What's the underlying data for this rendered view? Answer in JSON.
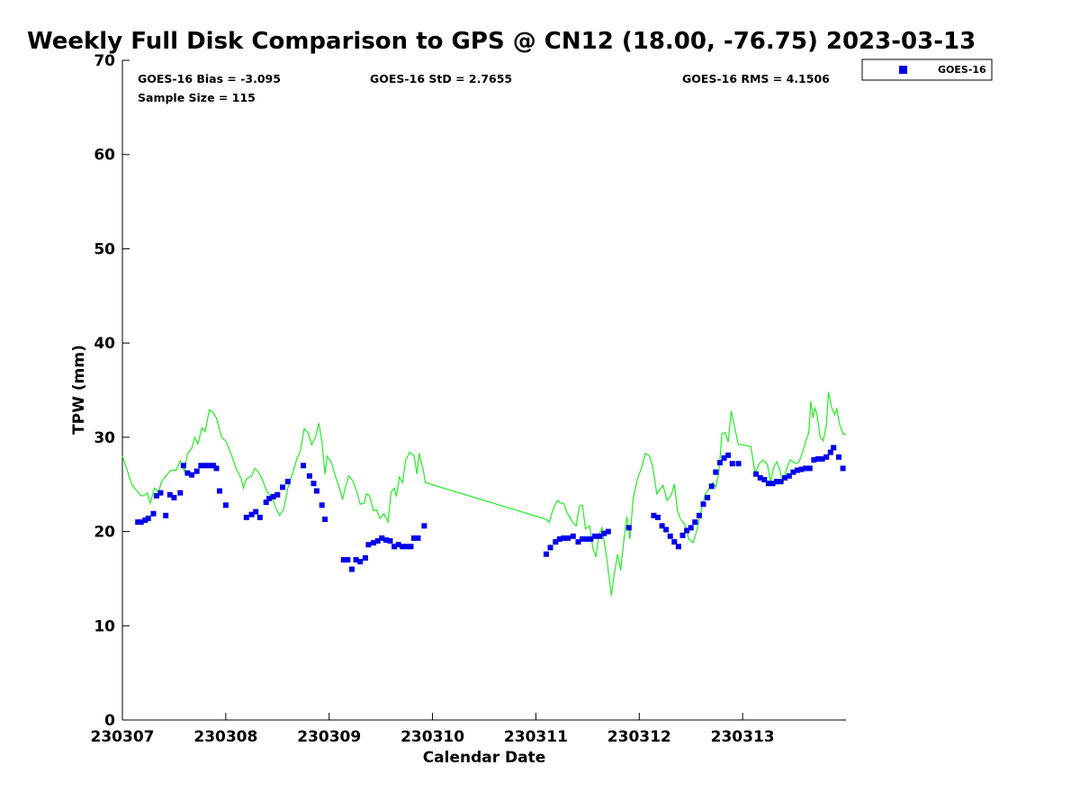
{
  "chart_data": {
    "type": "scatter",
    "title": "Weekly Full Disk Comparison to GPS @ CN12 (18.00, -76.75) 2023-03-13",
    "xlabel": "Calendar Date",
    "ylabel": "TPW (mm)",
    "xlim": [
      0,
      7
    ],
    "ylim": [
      0,
      70
    ],
    "x_tick_labels": [
      "230307",
      "230308",
      "230309",
      "230310",
      "230311",
      "230312",
      "230313"
    ],
    "y_tick_labels": [
      "0",
      "10",
      "20",
      "30",
      "40",
      "50",
      "60",
      "70"
    ],
    "x_units_note": "days from 2023-03-07 00Z",
    "grid": false,
    "legend_position": "top-right",
    "stats": {
      "bias": "GOES-16 Bias = -3.095",
      "std": "GOES-16 StD = 2.7655",
      "rms": "GOES-16 RMS = 4.1506",
      "sample": "Sample Size = 115"
    },
    "colors": {
      "goes": "#0000ee",
      "gps": "#22ee22",
      "axis": "#000000"
    },
    "series": [
      {
        "name": "GOES-16",
        "marker": "square",
        "color": "#0000ee",
        "points": [
          [
            0.15,
            21.0
          ],
          [
            0.18,
            21.0
          ],
          [
            0.22,
            21.2
          ],
          [
            0.25,
            21.4
          ],
          [
            0.3,
            21.9
          ],
          [
            0.33,
            23.8
          ],
          [
            0.37,
            24.1
          ],
          [
            0.42,
            21.7
          ],
          [
            0.46,
            23.9
          ],
          [
            0.5,
            23.6
          ],
          [
            0.56,
            24.1
          ],
          [
            0.59,
            27.0
          ],
          [
            0.63,
            26.2
          ],
          [
            0.67,
            26.0
          ],
          [
            0.72,
            26.4
          ],
          [
            0.76,
            27.0
          ],
          [
            0.8,
            27.0
          ],
          [
            0.84,
            27.0
          ],
          [
            0.88,
            27.0
          ],
          [
            0.91,
            26.7
          ],
          [
            0.94,
            24.3
          ],
          [
            1.0,
            22.8
          ],
          [
            1.2,
            21.5
          ],
          [
            1.25,
            21.8
          ],
          [
            1.29,
            22.1
          ],
          [
            1.33,
            21.5
          ],
          [
            1.39,
            23.1
          ],
          [
            1.42,
            23.5
          ],
          [
            1.46,
            23.7
          ],
          [
            1.5,
            23.9
          ],
          [
            1.55,
            24.7
          ],
          [
            1.6,
            25.3
          ],
          [
            1.75,
            27.0
          ],
          [
            1.81,
            25.9
          ],
          [
            1.85,
            25.1
          ],
          [
            1.88,
            24.3
          ],
          [
            1.93,
            22.8
          ],
          [
            1.96,
            21.3
          ],
          [
            2.14,
            17.0
          ],
          [
            2.18,
            17.0
          ],
          [
            2.22,
            16.0
          ],
          [
            2.26,
            17.0
          ],
          [
            2.3,
            16.8
          ],
          [
            2.35,
            17.2
          ],
          [
            2.38,
            18.6
          ],
          [
            2.43,
            18.8
          ],
          [
            2.47,
            19.0
          ],
          [
            2.51,
            19.3
          ],
          [
            2.55,
            19.1
          ],
          [
            2.59,
            19.0
          ],
          [
            2.63,
            18.4
          ],
          [
            2.67,
            18.6
          ],
          [
            2.71,
            18.4
          ],
          [
            2.75,
            18.4
          ],
          [
            2.79,
            18.4
          ],
          [
            2.82,
            19.3
          ],
          [
            2.86,
            19.3
          ],
          [
            2.92,
            20.6
          ],
          [
            4.1,
            17.6
          ],
          [
            4.14,
            18.3
          ],
          [
            4.19,
            18.9
          ],
          [
            4.23,
            19.2
          ],
          [
            4.27,
            19.3
          ],
          [
            4.31,
            19.3
          ],
          [
            4.36,
            19.5
          ],
          [
            4.41,
            18.9
          ],
          [
            4.45,
            19.2
          ],
          [
            4.49,
            19.2
          ],
          [
            4.53,
            19.2
          ],
          [
            4.57,
            19.5
          ],
          [
            4.62,
            19.5
          ],
          [
            4.66,
            19.8
          ],
          [
            4.7,
            20.0
          ],
          [
            4.9,
            20.4
          ],
          [
            5.14,
            21.7
          ],
          [
            5.18,
            21.5
          ],
          [
            5.22,
            20.6
          ],
          [
            5.26,
            20.2
          ],
          [
            5.3,
            19.5
          ],
          [
            5.34,
            18.9
          ],
          [
            5.38,
            18.4
          ],
          [
            5.42,
            19.6
          ],
          [
            5.46,
            20.1
          ],
          [
            5.5,
            20.4
          ],
          [
            5.54,
            21.0
          ],
          [
            5.58,
            21.7
          ],
          [
            5.62,
            22.9
          ],
          [
            5.66,
            23.6
          ],
          [
            5.7,
            24.8
          ],
          [
            5.74,
            26.3
          ],
          [
            5.78,
            27.3
          ],
          [
            5.82,
            27.8
          ],
          [
            5.86,
            28.1
          ],
          [
            5.9,
            27.2
          ],
          [
            5.96,
            27.2
          ],
          [
            6.13,
            26.1
          ],
          [
            6.17,
            25.7
          ],
          [
            6.21,
            25.5
          ],
          [
            6.25,
            25.1
          ],
          [
            6.29,
            25.1
          ],
          [
            6.33,
            25.3
          ],
          [
            6.37,
            25.3
          ],
          [
            6.41,
            25.7
          ],
          [
            6.45,
            25.9
          ],
          [
            6.49,
            26.3
          ],
          [
            6.53,
            26.5
          ],
          [
            6.57,
            26.6
          ],
          [
            6.61,
            26.7
          ],
          [
            6.65,
            26.7
          ],
          [
            6.69,
            27.6
          ],
          [
            6.73,
            27.7
          ],
          [
            6.77,
            27.7
          ],
          [
            6.81,
            27.9
          ],
          [
            6.85,
            28.4
          ],
          [
            6.88,
            28.9
          ],
          [
            6.93,
            27.9
          ],
          [
            6.97,
            26.7
          ]
        ]
      },
      {
        "name": "GPS",
        "marker": "line",
        "color": "#22ee22",
        "points": [
          [
            0.0,
            28.0
          ],
          [
            0.05,
            26.4
          ],
          [
            0.09,
            25.0
          ],
          [
            0.14,
            24.3
          ],
          [
            0.18,
            23.8
          ],
          [
            0.21,
            23.8
          ],
          [
            0.24,
            24.1
          ],
          [
            0.27,
            23.0
          ],
          [
            0.31,
            24.6
          ],
          [
            0.35,
            24.2
          ],
          [
            0.38,
            25.3
          ],
          [
            0.42,
            25.9
          ],
          [
            0.47,
            26.5
          ],
          [
            0.52,
            26.5
          ],
          [
            0.56,
            27.5
          ],
          [
            0.6,
            26.4
          ],
          [
            0.63,
            28.3
          ],
          [
            0.67,
            28.8
          ],
          [
            0.7,
            30.0
          ],
          [
            0.73,
            29.3
          ],
          [
            0.77,
            31.0
          ],
          [
            0.8,
            30.6
          ],
          [
            0.84,
            32.9
          ],
          [
            0.88,
            32.6
          ],
          [
            0.91,
            32.0
          ],
          [
            0.96,
            30.0
          ],
          [
            1.0,
            29.6
          ],
          [
            1.05,
            28.3
          ],
          [
            1.1,
            26.7
          ],
          [
            1.15,
            25.6
          ],
          [
            1.17,
            24.6
          ],
          [
            1.2,
            25.6
          ],
          [
            1.25,
            25.9
          ],
          [
            1.28,
            26.7
          ],
          [
            1.31,
            26.4
          ],
          [
            1.35,
            25.6
          ],
          [
            1.4,
            24.2
          ],
          [
            1.45,
            23.6
          ],
          [
            1.48,
            22.6
          ],
          [
            1.52,
            21.7
          ],
          [
            1.56,
            22.4
          ],
          [
            1.6,
            24.6
          ],
          [
            1.65,
            26.3
          ],
          [
            1.69,
            27.8
          ],
          [
            1.72,
            28.5
          ],
          [
            1.76,
            30.9
          ],
          [
            1.8,
            30.4
          ],
          [
            1.83,
            29.2
          ],
          [
            1.87,
            30.1
          ],
          [
            1.9,
            31.5
          ],
          [
            1.93,
            29.6
          ],
          [
            1.96,
            26.1
          ],
          [
            1.98,
            28.0
          ],
          [
            2.02,
            27.4
          ],
          [
            2.06,
            25.9
          ],
          [
            2.1,
            24.6
          ],
          [
            2.13,
            23.4
          ],
          [
            2.16,
            24.8
          ],
          [
            2.19,
            25.9
          ],
          [
            2.23,
            25.4
          ],
          [
            2.27,
            24.1
          ],
          [
            2.3,
            22.9
          ],
          [
            2.34,
            23.0
          ],
          [
            2.36,
            24.0
          ],
          [
            2.39,
            23.8
          ],
          [
            2.43,
            22.2
          ],
          [
            2.46,
            22.3
          ],
          [
            2.49,
            21.4
          ],
          [
            2.53,
            21.9
          ],
          [
            2.57,
            21.0
          ],
          [
            2.6,
            24.2
          ],
          [
            2.63,
            24.6
          ],
          [
            2.65,
            23.7
          ],
          [
            2.68,
            25.8
          ],
          [
            2.71,
            25.2
          ],
          [
            2.74,
            27.6
          ],
          [
            2.78,
            28.4
          ],
          [
            2.82,
            28.1
          ],
          [
            2.85,
            26.1
          ],
          [
            2.87,
            28.3
          ],
          [
            2.91,
            26.6
          ],
          [
            2.93,
            25.2
          ],
          [
            4.1,
            21.3
          ],
          [
            4.13,
            21.0
          ],
          [
            4.15,
            21.8
          ],
          [
            4.18,
            22.7
          ],
          [
            4.21,
            23.3
          ],
          [
            4.24,
            23.0
          ],
          [
            4.27,
            23.0
          ],
          [
            4.3,
            22.0
          ],
          [
            4.33,
            21.5
          ],
          [
            4.36,
            20.9
          ],
          [
            4.39,
            20.6
          ],
          [
            4.42,
            22.7
          ],
          [
            4.45,
            22.8
          ],
          [
            4.48,
            20.3
          ],
          [
            4.52,
            20.6
          ],
          [
            4.55,
            18.3
          ],
          [
            4.58,
            17.3
          ],
          [
            4.61,
            19.6
          ],
          [
            4.64,
            20.4
          ],
          [
            4.68,
            17.6
          ],
          [
            4.71,
            15.0
          ],
          [
            4.73,
            13.2
          ],
          [
            4.76,
            15.6
          ],
          [
            4.79,
            17.6
          ],
          [
            4.82,
            15.9
          ],
          [
            4.85,
            19.0
          ],
          [
            4.88,
            21.6
          ],
          [
            4.91,
            19.2
          ],
          [
            4.94,
            23.4
          ],
          [
            4.98,
            25.5
          ],
          [
            5.02,
            26.7
          ],
          [
            5.06,
            28.3
          ],
          [
            5.1,
            28.0
          ],
          [
            5.13,
            26.9
          ],
          [
            5.17,
            24.0
          ],
          [
            5.2,
            24.5
          ],
          [
            5.23,
            24.9
          ],
          [
            5.27,
            23.3
          ],
          [
            5.31,
            23.9
          ],
          [
            5.34,
            25.0
          ],
          [
            5.37,
            22.2
          ],
          [
            5.4,
            21.3
          ],
          [
            5.44,
            20.8
          ],
          [
            5.48,
            19.2
          ],
          [
            5.52,
            18.8
          ],
          [
            5.56,
            20.2
          ],
          [
            5.6,
            22.3
          ],
          [
            5.64,
            24.0
          ],
          [
            5.68,
            24.6
          ],
          [
            5.71,
            25.2
          ],
          [
            5.74,
            24.7
          ],
          [
            5.77,
            26.2
          ],
          [
            5.8,
            30.4
          ],
          [
            5.83,
            30.5
          ],
          [
            5.86,
            29.5
          ],
          [
            5.89,
            32.8
          ],
          [
            5.92,
            31.2
          ],
          [
            5.96,
            29.2
          ],
          [
            6.0,
            29.2
          ],
          [
            6.04,
            29.1
          ],
          [
            6.08,
            29.0
          ],
          [
            6.12,
            26.2
          ],
          [
            6.16,
            27.2
          ],
          [
            6.2,
            27.6
          ],
          [
            6.24,
            27.1
          ],
          [
            6.27,
            25.2
          ],
          [
            6.3,
            26.8
          ],
          [
            6.33,
            27.4
          ],
          [
            6.36,
            26.6
          ],
          [
            6.39,
            25.2
          ],
          [
            6.43,
            26.8
          ],
          [
            6.46,
            27.6
          ],
          [
            6.49,
            27.4
          ],
          [
            6.52,
            27.2
          ],
          [
            6.55,
            27.5
          ],
          [
            6.58,
            28.4
          ],
          [
            6.61,
            29.6
          ],
          [
            6.64,
            30.5
          ],
          [
            6.66,
            33.8
          ],
          [
            6.68,
            32.1
          ],
          [
            6.7,
            33.1
          ],
          [
            6.72,
            32.4
          ],
          [
            6.75,
            30.0
          ],
          [
            6.78,
            29.6
          ],
          [
            6.81,
            31.3
          ],
          [
            6.83,
            34.8
          ],
          [
            6.86,
            33.2
          ],
          [
            6.89,
            32.4
          ],
          [
            6.91,
            33.0
          ],
          [
            6.94,
            31.3
          ],
          [
            6.97,
            30.4
          ],
          [
            7.0,
            30.3
          ]
        ]
      }
    ]
  },
  "legend": {
    "label": "GOES-16"
  }
}
